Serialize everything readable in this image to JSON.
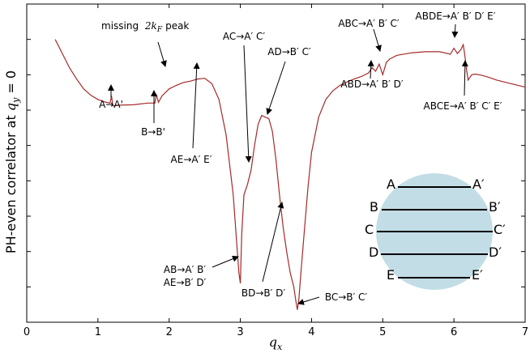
{
  "chart_data": {
    "type": "line",
    "xlabel": "q_x",
    "ylabel": "PH-even correlator at q_y = 0",
    "xlim": [
      0,
      7
    ],
    "xticks": [
      "0",
      "1",
      "2",
      "3",
      "4",
      "5",
      "6",
      "7"
    ],
    "yticks_labeled": false,
    "grid": false,
    "legend": "none",
    "line_color": "#a52a2a",
    "series": [
      {
        "x": [
          0.4,
          0.5,
          0.6,
          0.7,
          0.8,
          0.9,
          1.0,
          1.1,
          1.17,
          1.19,
          1.21,
          1.3,
          1.5,
          1.7,
          1.8,
          1.82,
          1.85,
          1.9,
          2.0,
          2.1,
          2.2,
          2.3,
          2.4,
          2.5,
          2.6,
          2.7,
          2.8,
          2.9,
          2.95,
          2.98,
          3.0,
          3.02,
          3.05,
          3.1,
          3.15,
          3.2,
          3.25,
          3.3,
          3.35,
          3.4,
          3.45,
          3.5,
          3.55,
          3.6,
          3.65,
          3.7,
          3.75,
          3.78,
          3.8,
          3.82,
          3.85,
          3.9,
          3.95,
          4.0,
          4.1,
          4.2,
          4.3,
          4.4,
          4.5,
          4.6,
          4.7,
          4.8,
          4.85,
          4.9,
          4.95,
          5.0,
          5.05,
          5.1,
          5.2,
          5.4,
          5.6,
          5.8,
          5.95,
          6.0,
          6.05,
          6.1,
          6.13,
          6.15,
          6.18,
          6.2,
          6.25,
          6.3,
          6.4,
          6.5,
          6.6,
          6.7,
          6.8,
          6.9,
          7.0
        ],
        "y": [
          5.0,
          4.6,
          4.2,
          3.88,
          3.6,
          3.42,
          3.3,
          3.23,
          3.2,
          3.4,
          3.12,
          3.14,
          3.15,
          3.2,
          3.2,
          3.45,
          3.22,
          3.4,
          3.6,
          3.7,
          3.78,
          3.82,
          3.88,
          3.9,
          3.75,
          3.3,
          2.3,
          0.6,
          -0.8,
          -1.6,
          -1.9,
          -0.5,
          0.6,
          0.9,
          1.3,
          2.0,
          2.6,
          2.85,
          2.8,
          2.76,
          2.4,
          1.6,
          0.6,
          -0.3,
          -1.0,
          -1.6,
          -2.0,
          -2.4,
          -2.65,
          -2.4,
          -1.6,
          -0.4,
          0.8,
          1.8,
          2.8,
          3.3,
          3.55,
          3.7,
          3.8,
          3.88,
          3.95,
          4.05,
          4.2,
          4.1,
          4.3,
          4.0,
          4.35,
          4.45,
          4.55,
          4.62,
          4.65,
          4.65,
          4.58,
          4.75,
          4.6,
          4.72,
          4.85,
          4.6,
          4.1,
          3.85,
          4.0,
          4.02,
          3.98,
          3.92,
          3.85,
          3.8,
          3.75,
          3.7,
          3.65
        ]
      }
    ],
    "annotations": [
      {
        "id": "a-aa",
        "text": "A→A'"
      },
      {
        "id": "b-bb",
        "text": "B→B'"
      },
      {
        "id": "missing",
        "text": "missing",
        "math": "2k",
        "sub": "F",
        "tail": "peak"
      },
      {
        "id": "ae-ae",
        "text": "AE→A′ E′"
      },
      {
        "id": "ac-ac",
        "text": "AC→A′ C′"
      },
      {
        "id": "ad-bc",
        "text": "AD→B′ C′"
      },
      {
        "id": "ab-ab",
        "text": "AB→A′ B′"
      },
      {
        "id": "ae-bd",
        "text": "AE→B′ D′"
      },
      {
        "id": "bd-bd",
        "text": "BD→B′ D′"
      },
      {
        "id": "bc-bc",
        "text": "BC→B′ C′"
      },
      {
        "id": "abc-abc",
        "text": "ABC→A′ B′ C′"
      },
      {
        "id": "abd-abd",
        "text": "ABD→A′ B′ D′"
      },
      {
        "id": "abde",
        "text": "ABDE→A′ B′ D′ E′"
      },
      {
        "id": "abce",
        "text": "ABCE→A′ B′ C′ E′"
      }
    ],
    "inset": {
      "circle_color": "#c2dde6",
      "left_labels": [
        "A",
        "B",
        "C",
        "D",
        "E"
      ],
      "right_labels": [
        "A′",
        "B′",
        "C′",
        "D′",
        "E′"
      ]
    }
  }
}
